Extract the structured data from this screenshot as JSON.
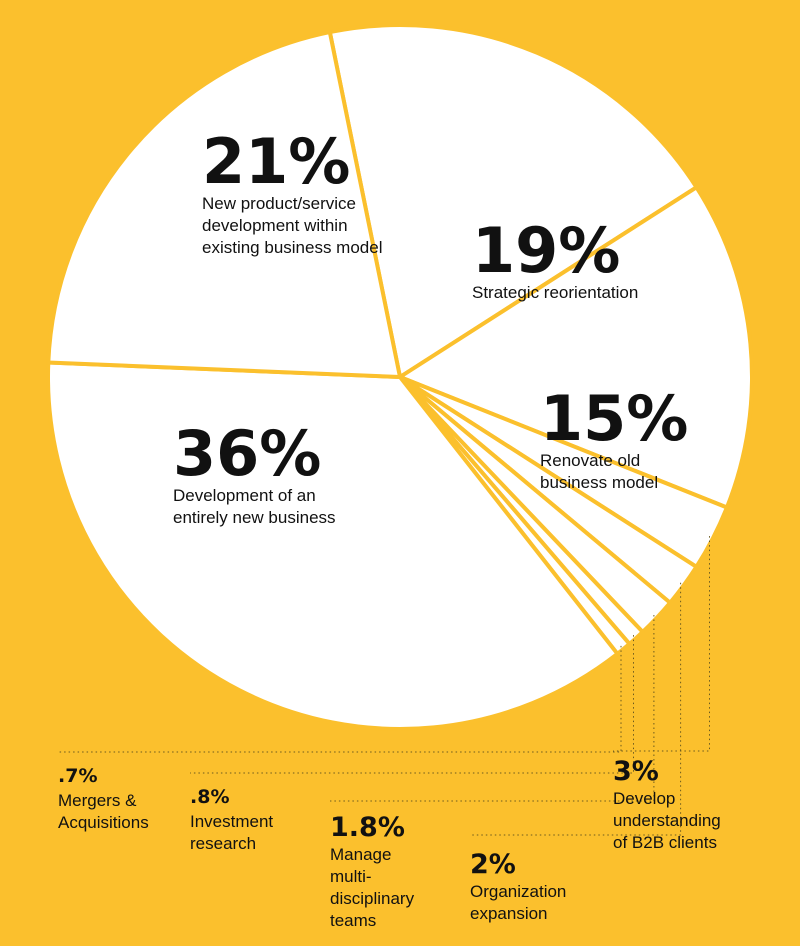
{
  "chart_data": {
    "type": "pie",
    "background_color": "#fbc02d",
    "slice_color": "#ffffff",
    "separator_color": "#fbc02d",
    "text_color": "#111111",
    "slices": [
      {
        "id": "strategic",
        "value": 19,
        "pct_label": "19%",
        "label_lines": [
          "Strategic reorientation"
        ]
      },
      {
        "id": "renovate",
        "value": 15,
        "pct_label": "15%",
        "label_lines": [
          "Renovate old",
          "business model"
        ]
      },
      {
        "id": "b2b",
        "value": 3,
        "pct_label": "3%",
        "label_lines": [
          "Develop",
          "understanding",
          "of B2B clients"
        ]
      },
      {
        "id": "expansion",
        "value": 2,
        "pct_label": "2%",
        "label_lines": [
          "Organization",
          "expansion"
        ]
      },
      {
        "id": "teams",
        "value": 1.8,
        "pct_label": "1.8%",
        "label_lines": [
          "Manage",
          "multi-",
          "disciplinary",
          "teams"
        ]
      },
      {
        "id": "investment",
        "value": 0.8,
        "pct_label": ".8%",
        "label_lines": [
          "Investment",
          "research"
        ]
      },
      {
        "id": "mergers",
        "value": 0.7,
        "pct_label": ".7%",
        "label_lines": [
          "Mergers &",
          "Acquisitions"
        ]
      },
      {
        "id": "new-business",
        "value": 36,
        "pct_label": "36%",
        "label_lines": [
          "Development of an",
          "entirely new business"
        ]
      },
      {
        "id": "new-product",
        "value": 21,
        "pct_label": "21%",
        "label_lines": [
          "New product/service",
          "development within",
          "existing business model"
        ]
      }
    ]
  }
}
